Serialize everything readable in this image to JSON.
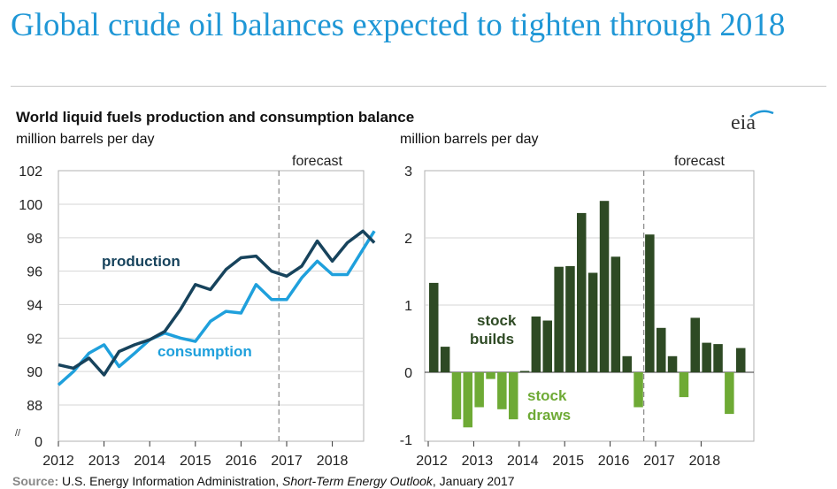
{
  "headline": "Global crude oil balances expected to tighten through 2018",
  "chart_title": "World liquid fuels production and consumption balance",
  "logo_text": "eia",
  "source": {
    "label": "Source:",
    "agency": "U.S. Energy Information Administration,",
    "report": "Short-Term Energy Outlook",
    "date": ", January 2017"
  },
  "colors": {
    "production": "#17435c",
    "consumption": "#1fa0dc",
    "builds": "#2e4a24",
    "draws": "#6eaa35",
    "title": "#1f97d6"
  },
  "chart_data": [
    {
      "type": "line",
      "title": "World liquid fuels production and consumption balance",
      "ylabel": "million barrels per day",
      "ylim": [
        88,
        102
      ],
      "y_ticks": [
        "102",
        "100",
        "98",
        "96",
        "94",
        "92",
        "90",
        "88"
      ],
      "y_zero_label": "0",
      "axis_break_mark": "//",
      "x_tick_labels": [
        "2012",
        "2013",
        "2014",
        "2015",
        "2016",
        "2017",
        "2018"
      ],
      "x_range": [
        2012,
        2018.92
      ],
      "forecast_start": 2016.83,
      "forecast_label": "forecast",
      "series": [
        {
          "name": "production",
          "label": "production",
          "x": [
            2012.0,
            2012.33,
            2012.67,
            2013.0,
            2013.33,
            2013.67,
            2014.0,
            2014.33,
            2014.67,
            2015.0,
            2015.33,
            2015.67,
            2016.0,
            2016.33,
            2016.67,
            2017.0,
            2017.33,
            2017.67,
            2018.0,
            2018.33,
            2018.67,
            2018.92
          ],
          "values": [
            90.4,
            90.2,
            90.8,
            89.8,
            91.2,
            91.6,
            91.9,
            92.4,
            93.7,
            95.2,
            94.9,
            96.1,
            96.8,
            96.9,
            96.0,
            95.7,
            96.3,
            97.8,
            96.6,
            97.7,
            98.4,
            97.7
          ]
        },
        {
          "name": "consumption",
          "label": "consumption",
          "x": [
            2012.0,
            2012.33,
            2012.67,
            2013.0,
            2013.33,
            2013.67,
            2014.0,
            2014.33,
            2014.67,
            2015.0,
            2015.33,
            2015.67,
            2016.0,
            2016.33,
            2016.67,
            2017.0,
            2017.33,
            2017.67,
            2018.0,
            2018.33,
            2018.67,
            2018.92
          ],
          "values": [
            89.2,
            90.0,
            91.1,
            91.6,
            90.3,
            91.1,
            91.9,
            92.3,
            92.0,
            91.8,
            93.0,
            93.6,
            93.5,
            95.2,
            94.3,
            94.3,
            95.6,
            96.6,
            95.8,
            95.8,
            97.3,
            98.4
          ]
        }
      ]
    },
    {
      "type": "bar",
      "ylabel": "million barrels per day",
      "ylim": [
        -1,
        3
      ],
      "y_ticks": [
        "3",
        "2",
        "1",
        "0",
        "-1"
      ],
      "x_tick_labels": [
        "2012",
        "2013",
        "2014",
        "2015",
        "2016",
        "2017",
        "2018"
      ],
      "forecast_start": 2016.75,
      "forecast_label": "forecast",
      "annotations": {
        "builds": [
          "stock",
          "builds"
        ],
        "draws": [
          "stock",
          "draws"
        ]
      },
      "x": [
        2012.0,
        2012.25,
        2012.5,
        2012.75,
        2013.0,
        2013.25,
        2013.5,
        2013.75,
        2014.0,
        2014.25,
        2014.5,
        2014.75,
        2015.0,
        2015.25,
        2015.5,
        2015.75,
        2016.0,
        2016.25,
        2016.5,
        2016.75,
        2017.0,
        2017.25,
        2017.5,
        2017.75,
        2018.0,
        2018.25,
        2018.5,
        2018.75
      ],
      "values": [
        1.33,
        0.38,
        -0.7,
        -0.82,
        -0.52,
        -0.1,
        -0.55,
        -0.7,
        0.02,
        0.83,
        0.77,
        1.57,
        1.58,
        2.37,
        1.48,
        2.55,
        1.72,
        0.24,
        -0.52,
        2.05,
        0.66,
        0.24,
        -0.37,
        0.81,
        0.44,
        0.42,
        -0.62,
        0.36
      ]
    }
  ]
}
